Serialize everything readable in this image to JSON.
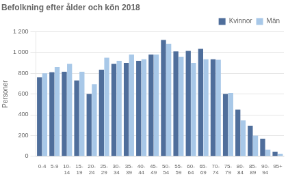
{
  "chart_data": {
    "type": "bar",
    "title": "Befolkning efter ålder och kön 2018",
    "ylabel": "Personer",
    "categories": [
      "0-4",
      "5-9",
      "10-\n14",
      "15-\n19",
      "20-\n24",
      "25-\n29",
      "30-\n34",
      "35-\n39",
      "40-\n44",
      "45-\n49",
      "50-\n54",
      "55-\n59",
      "60-\n64",
      "65-\n69",
      "70-\n74",
      "75-\n79",
      "80-\n84",
      "85-\n89",
      "90-\n94",
      "95+"
    ],
    "series": [
      {
        "name": "Kvinnor",
        "color": "#4F6E9B",
        "values": [
          760,
          810,
          815,
          730,
          600,
          835,
          890,
          900,
          920,
          980,
          1120,
          1010,
          1015,
          1035,
          935,
          600,
          450,
          295,
          170,
          45
        ]
      },
      {
        "name": "Män",
        "color": "#A8C8E8",
        "values": [
          800,
          860,
          890,
          815,
          695,
          950,
          920,
          980,
          935,
          980,
          1085,
          960,
          900,
          935,
          930,
          610,
          345,
          200,
          65,
          25
        ]
      }
    ],
    "ylim": [
      0,
      1200
    ],
    "yticks": [
      0,
      200,
      400,
      600,
      800,
      {
        "value": 1000,
        "label": "1 000"
      },
      {
        "value": 1200,
        "label": "1 200"
      }
    ],
    "grid": true,
    "legend": "upper right"
  }
}
